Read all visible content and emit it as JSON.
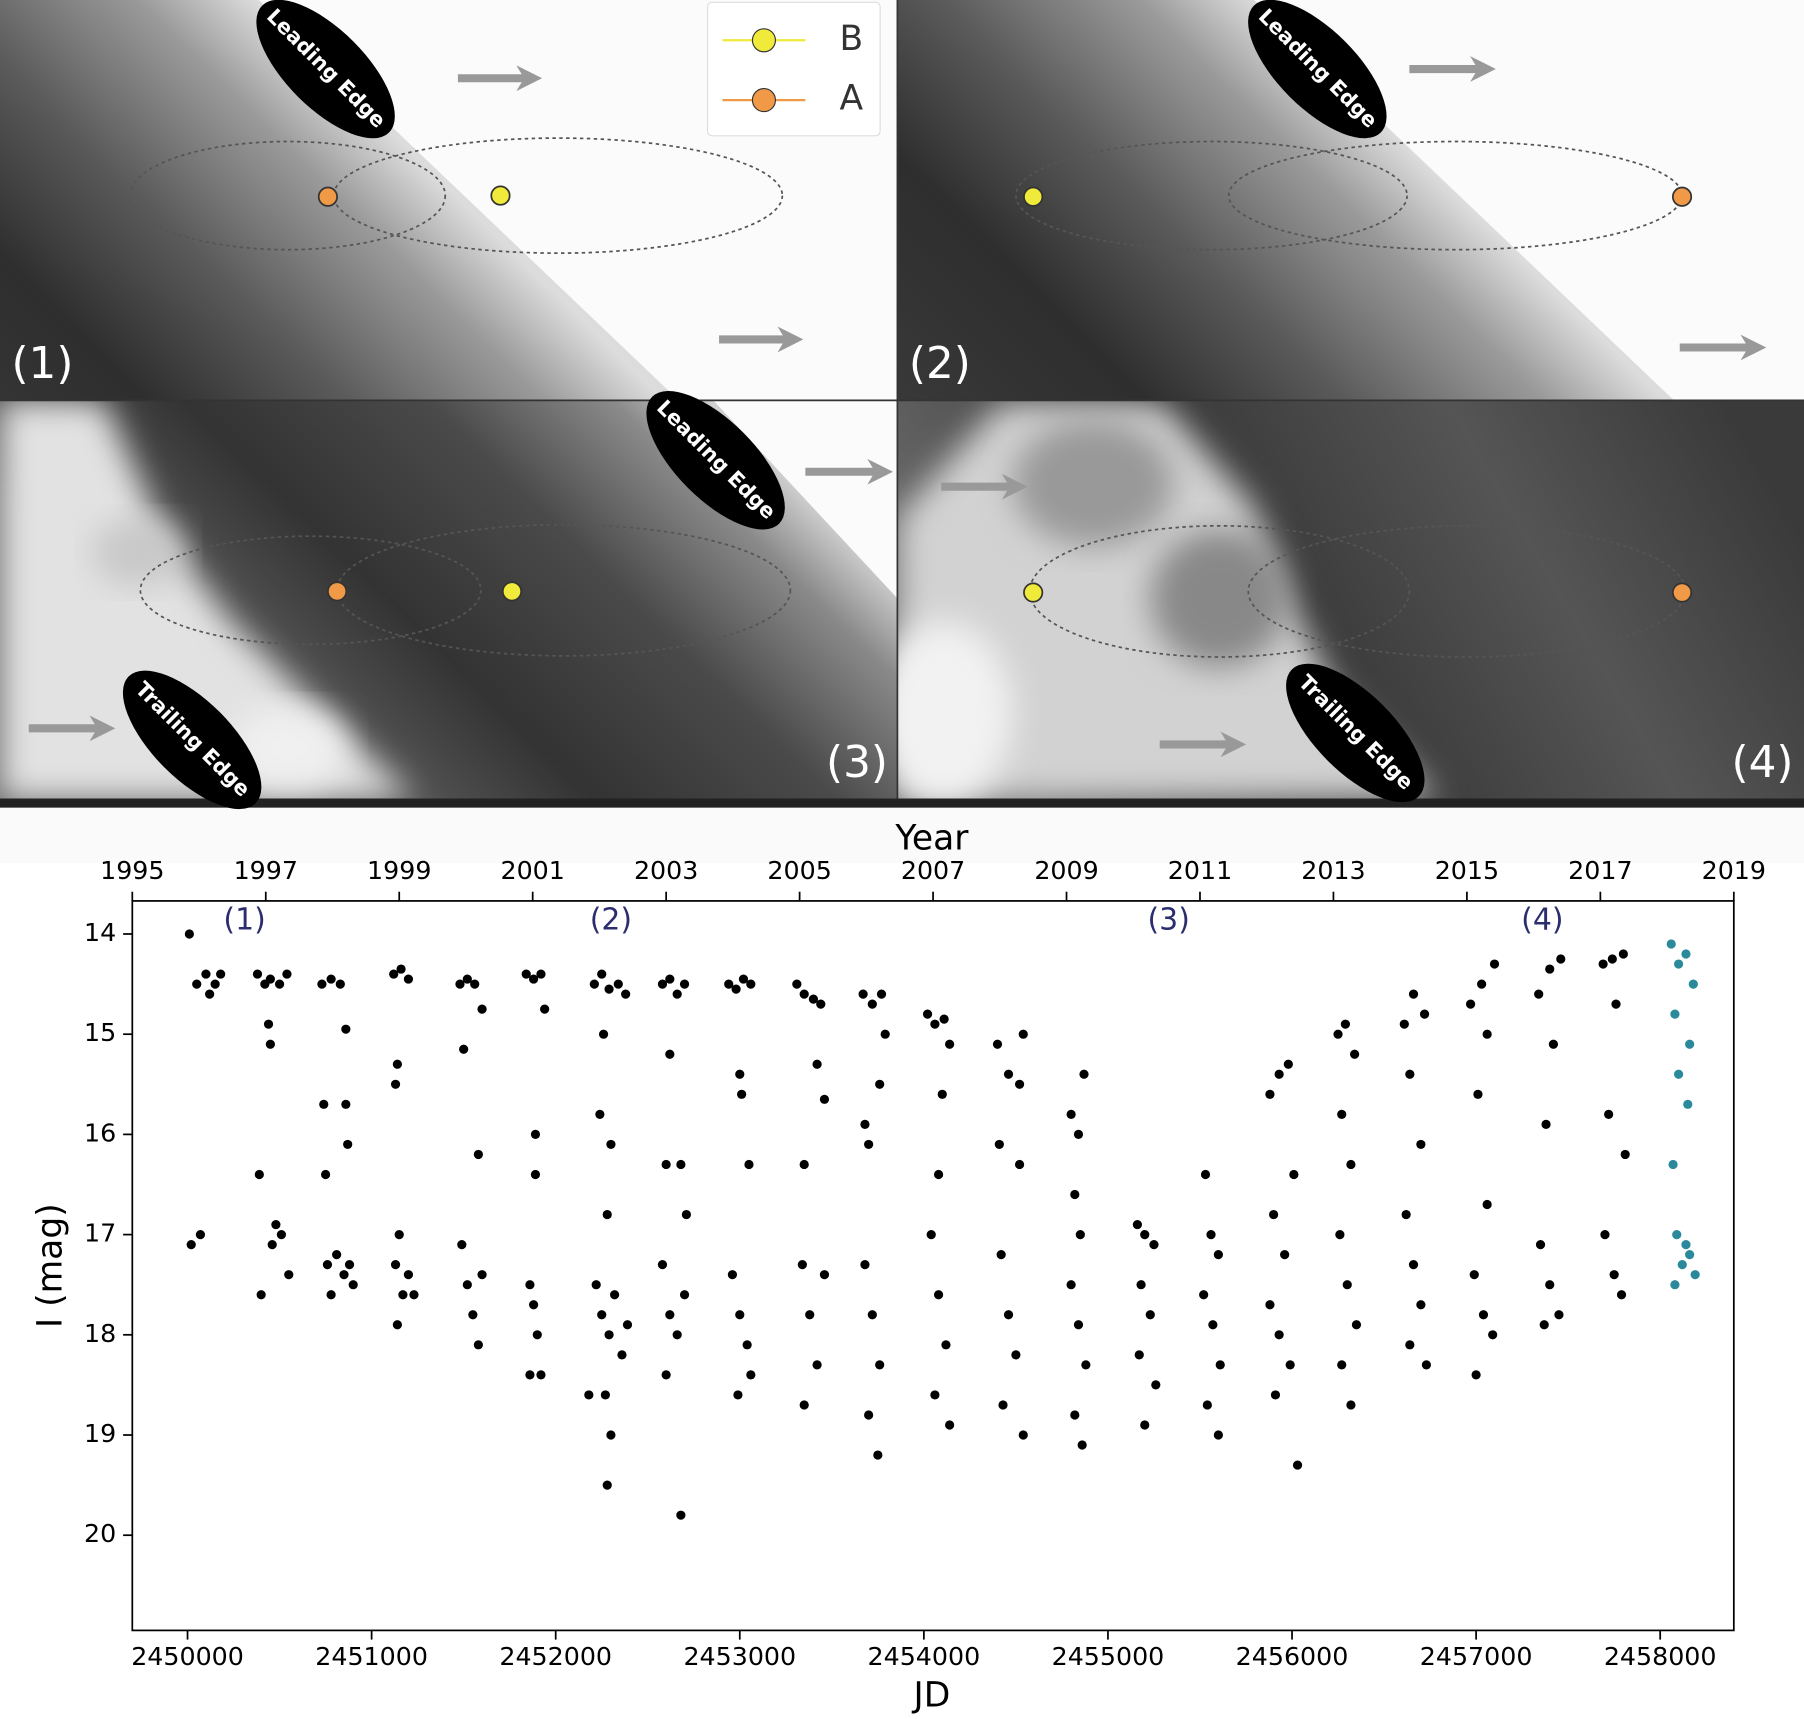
{
  "diagram": {
    "legend": [
      {
        "name": "B",
        "color": "#f0ea3a"
      },
      {
        "name": "A",
        "color": "#f09a48"
      }
    ],
    "panels": [
      {
        "label": "(1)",
        "edges": [
          "Leading Edge"
        ]
      },
      {
        "label": "(2)",
        "edges": [
          "Leading Edge"
        ]
      },
      {
        "label": "(3)",
        "edges": [
          "Leading Edge",
          "Trailing Edge"
        ]
      },
      {
        "label": "(4)",
        "edges": [
          "Trailing Edge"
        ]
      }
    ]
  },
  "chart_data": {
    "type": "scatter",
    "xlabel": "JD",
    "ylabel": "I (mag)",
    "x2label": "Year",
    "xlim": [
      2449700,
      2458400
    ],
    "xticks": [
      2450000,
      2451000,
      2452000,
      2453000,
      2454000,
      2455000,
      2456000,
      2457000,
      2458000
    ],
    "ylim": [
      20.95,
      13.67
    ],
    "yticks": [
      14,
      15,
      16,
      17,
      18,
      19,
      20
    ],
    "x2lim": [
      1995,
      2019
    ],
    "x2ticks": [
      1995,
      1997,
      1999,
      2001,
      2003,
      2005,
      2007,
      2009,
      2011,
      2013,
      2015,
      2017,
      2019
    ],
    "annotations": [
      {
        "text": "(1)",
        "x": 2450310,
        "y": 13.87
      },
      {
        "text": "(2)",
        "x": 2452300,
        "y": 13.87
      },
      {
        "text": "(3)",
        "x": 2455330,
        "y": 13.87
      },
      {
        "text": "(4)",
        "x": 2457360,
        "y": 13.87
      }
    ],
    "series": [
      {
        "color": "#000000",
        "x": [
          2450010,
          2450050,
          2450100,
          2450150,
          2450180,
          2450120,
          2450020,
          2450070,
          2450380,
          2450420,
          2450450,
          2450500,
          2450540,
          2450440,
          2450450,
          2450390,
          2450400,
          2450460,
          2450480,
          2450510,
          2450550,
          2450730,
          2450780,
          2450830,
          2450860,
          2450740,
          2450860,
          2450750,
          2450870,
          2450760,
          2450780,
          2450810,
          2450850,
          2450880,
          2450900,
          2451120,
          2451160,
          2451200,
          2451140,
          2451130,
          2451150,
          2451130,
          2451170,
          2451200,
          2451140,
          2451230,
          2451480,
          2451520,
          2451560,
          2451600,
          2451500,
          2451580,
          2451490,
          2451520,
          2451550,
          2451580,
          2451600,
          2451840,
          2451880,
          2451920,
          2451940,
          2451890,
          2451890,
          2451860,
          2451880,
          2451900,
          2451860,
          2451920,
          2452210,
          2452250,
          2452290,
          2452340,
          2452380,
          2452260,
          2452240,
          2452300,
          2452280,
          2452220,
          2452250,
          2452290,
          2452320,
          2452360,
          2452390,
          2452270,
          2452300,
          2452280,
          2452180,
          2452580,
          2452620,
          2452660,
          2452700,
          2452620,
          2452600,
          2452680,
          2452710,
          2452580,
          2452620,
          2452660,
          2452700,
          2452600,
          2452680,
          2452940,
          2452980,
          2453020,
          2453060,
          2453000,
          2453010,
          2453050,
          2452960,
          2453000,
          2453040,
          2452990,
          2453060,
          2453310,
          2453350,
          2453400,
          2453440,
          2453420,
          2453460,
          2453350,
          2453340,
          2453380,
          2453420,
          2453350,
          2453460,
          2453670,
          2453720,
          2453770,
          2453790,
          2453760,
          2453680,
          2453700,
          2453680,
          2453720,
          2453760,
          2453700,
          2453750,
          2454020,
          2454060,
          2454110,
          2454140,
          2454100,
          2454080,
          2454040,
          2454080,
          2454120,
          2454060,
          2454140,
          2454400,
          2454460,
          2454520,
          2454540,
          2454410,
          2454520,
          2454420,
          2454460,
          2454500,
          2454430,
          2454540,
          2454800,
          2454840,
          2454870,
          2454820,
          2454850,
          2454800,
          2454840,
          2454880,
          2454820,
          2454860,
          2455160,
          2455200,
          2455250,
          2455180,
          2455230,
          2455170,
          2455260,
          2455200,
          2455530,
          2455560,
          2455600,
          2455520,
          2455570,
          2455610,
          2455540,
          2455600,
          2455880,
          2455930,
          2455980,
          2456010,
          2455900,
          2455960,
          2455880,
          2455930,
          2455990,
          2455910,
          2456030,
          2456250,
          2456290,
          2456340,
          2456270,
          2456320,
          2456260,
          2456300,
          2456350,
          2456270,
          2456320,
          2456610,
          2456660,
          2456720,
          2456640,
          2456700,
          2456620,
          2456660,
          2456700,
          2456640,
          2456730,
          2456970,
          2457030,
          2457100,
          2457060,
          2457010,
          2457060,
          2456990,
          2457040,
          2457090,
          2457000,
          2457340,
          2457400,
          2457460,
          2457420,
          2457380,
          2457350,
          2457400,
          2457450,
          2457370,
          2457690,
          2457740,
          2457800,
          2457760,
          2457720,
          2457810,
          2457700,
          2457750,
          2457790
        ],
        "values": [
          14.0,
          14.5,
          14.4,
          14.5,
          14.4,
          14.6,
          17.1,
          17.0,
          14.4,
          14.5,
          14.45,
          14.5,
          14.4,
          14.9,
          15.1,
          16.4,
          17.6,
          17.1,
          16.9,
          17.0,
          17.4,
          14.5,
          14.45,
          14.5,
          14.95,
          15.7,
          15.7,
          16.4,
          16.1,
          17.3,
          17.6,
          17.2,
          17.4,
          17.3,
          17.5,
          14.4,
          14.35,
          14.45,
          15.3,
          15.5,
          17.0,
          17.3,
          17.6,
          17.4,
          17.9,
          17.6,
          14.5,
          14.45,
          14.5,
          14.75,
          15.15,
          16.2,
          17.1,
          17.5,
          17.8,
          18.1,
          17.4,
          14.4,
          14.45,
          14.4,
          14.75,
          16.0,
          16.4,
          17.5,
          17.7,
          18.0,
          18.4,
          18.4,
          14.5,
          14.4,
          14.55,
          14.5,
          14.6,
          15.0,
          15.8,
          16.1,
          16.8,
          17.5,
          17.8,
          18.0,
          17.6,
          18.2,
          17.9,
          18.6,
          19.0,
          19.5,
          18.6,
          14.5,
          14.45,
          14.6,
          14.5,
          15.2,
          16.3,
          16.3,
          16.8,
          17.3,
          17.8,
          18.0,
          17.6,
          18.4,
          19.8,
          14.5,
          14.55,
          14.45,
          14.5,
          15.4,
          15.6,
          16.3,
          17.4,
          17.8,
          18.1,
          18.6,
          18.4,
          14.5,
          14.6,
          14.65,
          14.7,
          15.3,
          15.65,
          16.3,
          17.3,
          17.8,
          18.3,
          18.7,
          17.4,
          14.6,
          14.7,
          14.6,
          15.0,
          15.5,
          15.9,
          16.1,
          17.3,
          17.8,
          18.3,
          18.8,
          19.2,
          14.8,
          14.9,
          14.85,
          15.1,
          15.6,
          16.4,
          17.0,
          17.6,
          18.1,
          18.6,
          18.9,
          15.1,
          15.4,
          15.5,
          15.0,
          16.1,
          16.3,
          17.2,
          17.8,
          18.2,
          18.7,
          19.0,
          15.8,
          16.0,
          15.4,
          16.6,
          17.0,
          17.5,
          17.9,
          18.3,
          18.8,
          19.1,
          16.9,
          17.0,
          17.1,
          17.5,
          17.8,
          18.2,
          18.5,
          18.9,
          16.4,
          17.0,
          17.2,
          17.6,
          17.9,
          18.3,
          18.7,
          19.0,
          15.6,
          15.4,
          15.3,
          16.4,
          16.8,
          17.2,
          17.7,
          18.0,
          18.3,
          18.6,
          19.3,
          15.0,
          14.9,
          15.2,
          15.8,
          16.3,
          17.0,
          17.5,
          17.9,
          18.3,
          18.7,
          14.9,
          14.6,
          14.8,
          15.4,
          16.1,
          16.8,
          17.3,
          17.7,
          18.1,
          18.3,
          14.7,
          14.5,
          14.3,
          15.0,
          15.6,
          16.7,
          17.4,
          17.8,
          18.0,
          18.4,
          14.6,
          14.35,
          14.25,
          15.1,
          15.9,
          17.1,
          17.5,
          17.8,
          17.9,
          14.3,
          14.25,
          14.2,
          14.7,
          15.8,
          16.2,
          17.0,
          17.4,
          17.6
        ]
      },
      {
        "color": "#2a8a9c",
        "x": [
          2458060,
          2458100,
          2458140,
          2458180,
          2458080,
          2458160,
          2458100,
          2458150,
          2458070,
          2458090,
          2458120,
          2458160,
          2458190,
          2458080,
          2458140
        ],
        "values": [
          14.1,
          14.3,
          14.2,
          14.5,
          14.8,
          15.1,
          15.4,
          15.7,
          16.3,
          17.0,
          17.3,
          17.2,
          17.4,
          17.5,
          17.1
        ]
      }
    ]
  }
}
